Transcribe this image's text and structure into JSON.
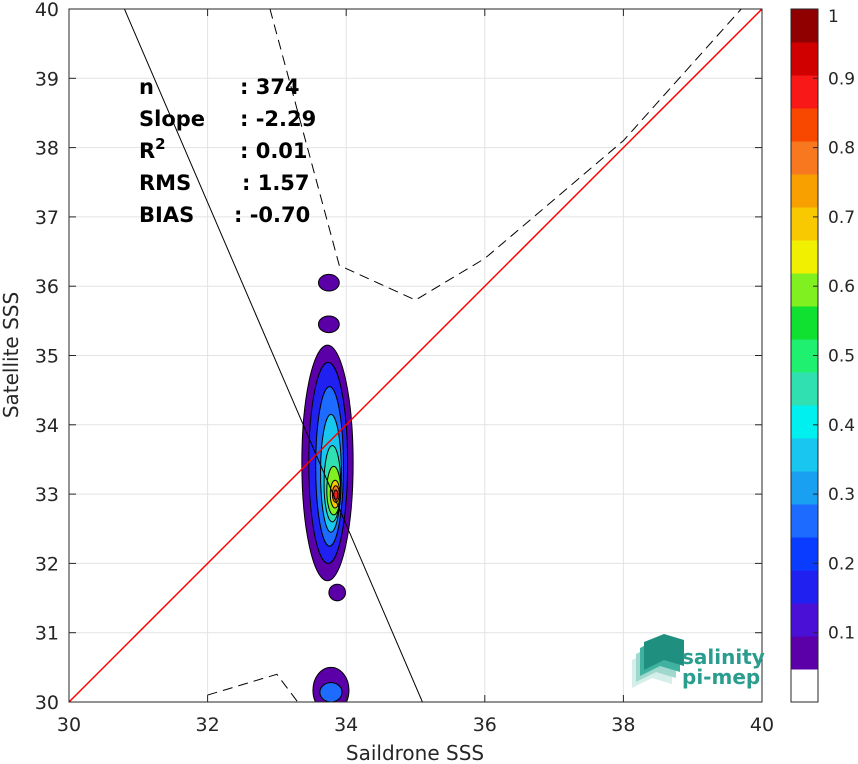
{
  "chart_data": {
    "type": "contour",
    "xlabel": "Saildrone SSS",
    "ylabel": "Satellite SSS",
    "xlim": [
      30,
      40
    ],
    "ylim": [
      30,
      40
    ],
    "xticks": [
      30,
      32,
      34,
      36,
      38,
      40
    ],
    "yticks": [
      30,
      31,
      32,
      33,
      34,
      35,
      36,
      37,
      38,
      39,
      40
    ],
    "grid": true,
    "stats": [
      {
        "label": "n",
        "value": ": 374"
      },
      {
        "label": "Slope",
        "value": ": -2.29"
      },
      {
        "label": "R",
        "sup": "2",
        "value": ": 0.01"
      },
      {
        "label": "RMS",
        "value": ": 1.57"
      },
      {
        "label": "BIAS",
        "value": ": -0.70"
      }
    ],
    "colorbar": {
      "min": 0,
      "max": 1,
      "ticks": [
        "0.1",
        "0.2",
        "0.3",
        "0.4",
        "0.5",
        "0.6",
        "0.7",
        "0.8",
        "0.9",
        "1"
      ],
      "colors": [
        "#ffffff",
        "#5b00a8",
        "#4a10d6",
        "#2020f0",
        "#0a3cff",
        "#1e6cff",
        "#1aa0f0",
        "#19c6f0",
        "#00f0f0",
        "#30e0b0",
        "#20f070",
        "#10e030",
        "#80f020",
        "#f0f000",
        "#f8c800",
        "#f8a000",
        "#f87820",
        "#f84800",
        "#f81818",
        "#d00000",
        "#900000"
      ]
    },
    "identity_line": {
      "x": [
        30,
        40
      ],
      "y": [
        30,
        40
      ],
      "color": "#ff0000"
    },
    "regression_line": {
      "x": [
        30.8,
        35.1
      ],
      "y": [
        40.0,
        30.0
      ],
      "color": "#000000"
    },
    "upper_envelope": {
      "x": [
        32.9,
        33.9,
        35.0,
        36.0,
        38.0,
        39.7
      ],
      "y": [
        40.0,
        36.3,
        35.8,
        36.4,
        38.1,
        40.0
      ]
    },
    "lower_envelope": {
      "x": [
        32.0,
        33.0,
        33.3
      ],
      "y": [
        30.1,
        30.4,
        30.0
      ]
    },
    "density": [
      {
        "x": 33.75,
        "y": 36.05,
        "dx": 0.15,
        "dy": 0.12,
        "level": 1
      },
      {
        "x": 33.75,
        "y": 35.45,
        "dx": 0.15,
        "dy": 0.12,
        "level": 1
      },
      {
        "x": 33.73,
        "y": 33.45,
        "dx": 0.37,
        "dy": 1.7,
        "level": 1
      },
      {
        "x": 33.74,
        "y": 33.45,
        "dx": 0.28,
        "dy": 1.45,
        "level": 2
      },
      {
        "x": 33.76,
        "y": 33.4,
        "dx": 0.2,
        "dy": 1.15,
        "level": 3
      },
      {
        "x": 33.78,
        "y": 33.3,
        "dx": 0.15,
        "dy": 0.85,
        "level": 4
      },
      {
        "x": 33.8,
        "y": 33.15,
        "dx": 0.12,
        "dy": 0.55,
        "level": 5
      },
      {
        "x": 33.82,
        "y": 33.05,
        "dx": 0.1,
        "dy": 0.35,
        "level": 6
      },
      {
        "x": 33.84,
        "y": 33.0,
        "dx": 0.07,
        "dy": 0.2,
        "level": 7
      },
      {
        "x": 33.85,
        "y": 33.0,
        "dx": 0.05,
        "dy": 0.12,
        "level": 8
      },
      {
        "x": 33.85,
        "y": 32.99,
        "dx": 0.03,
        "dy": 0.07,
        "level": 9
      },
      {
        "x": 33.87,
        "y": 31.58,
        "dx": 0.12,
        "dy": 0.12,
        "level": 1
      },
      {
        "x": 33.78,
        "y": 30.17,
        "dx": 0.26,
        "dy": 0.33,
        "level": 1
      },
      {
        "x": 33.78,
        "y": 30.14,
        "dx": 0.16,
        "dy": 0.14,
        "level": 3
      }
    ]
  },
  "logo": {
    "line1": "salinity",
    "line2": "pi-mep"
  }
}
